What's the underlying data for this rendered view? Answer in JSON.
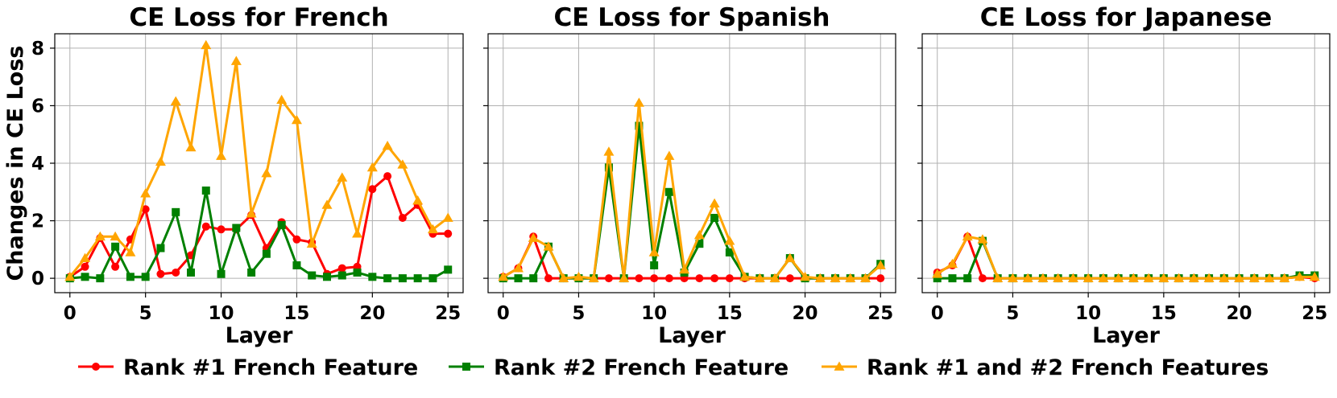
{
  "chart_data": [
    {
      "type": "line",
      "title": "CE Loss for French",
      "xlabel": "Layer",
      "ylabel": "Changes in CE Loss",
      "xlim": [
        -1,
        26
      ],
      "ylim": [
        -0.5,
        8.5
      ],
      "xticks": [
        "0",
        "5",
        "10",
        "15",
        "20",
        "25"
      ],
      "yticks": [
        "0",
        "2",
        "4",
        "6",
        "8"
      ],
      "grid": true,
      "x": [
        0,
        1,
        2,
        3,
        4,
        5,
        6,
        7,
        8,
        9,
        10,
        11,
        12,
        13,
        14,
        15,
        16,
        17,
        18,
        19,
        20,
        21,
        22,
        23,
        24,
        25
      ],
      "series": [
        {
          "name": "Rank #1 French Feature",
          "color": "#ff0000",
          "marker": "circle",
          "values": [
            0.05,
            0.4,
            1.4,
            0.4,
            1.35,
            2.4,
            0.15,
            0.2,
            0.8,
            1.8,
            1.7,
            1.7,
            2.2,
            1.05,
            1.95,
            1.35,
            1.25,
            0.15,
            0.35,
            0.4,
            3.1,
            3.55,
            2.1,
            2.55,
            1.55,
            1.55
          ]
        },
        {
          "name": "Rank #2 French Feature",
          "color": "#008000",
          "marker": "square",
          "values": [
            0.0,
            0.05,
            0.0,
            1.1,
            0.05,
            0.05,
            1.05,
            2.3,
            0.2,
            3.05,
            0.15,
            1.75,
            0.2,
            0.85,
            1.85,
            0.45,
            0.1,
            0.05,
            0.1,
            0.2,
            0.05,
            0.0,
            0.0,
            0.0,
            0.0,
            0.3
          ]
        },
        {
          "name": "Rank #1 and #2 French Features",
          "color": "#ffa500",
          "marker": "triangle",
          "values": [
            0.05,
            0.7,
            1.45,
            1.45,
            0.9,
            2.95,
            4.05,
            6.15,
            4.55,
            8.1,
            4.25,
            7.55,
            2.25,
            3.65,
            6.2,
            5.5,
            1.2,
            2.55,
            3.5,
            1.55,
            3.85,
            4.6,
            3.95,
            2.7,
            1.7,
            2.1
          ]
        }
      ]
    },
    {
      "type": "line",
      "title": "CE Loss for Spanish",
      "xlabel": "Layer",
      "ylabel": "",
      "xlim": [
        -1,
        26
      ],
      "ylim": [
        -0.5,
        8.5
      ],
      "xticks": [
        "0",
        "5",
        "10",
        "15",
        "20",
        "25"
      ],
      "grid": true,
      "x": [
        0,
        1,
        2,
        3,
        4,
        5,
        6,
        7,
        8,
        9,
        10,
        11,
        12,
        13,
        14,
        15,
        16,
        17,
        18,
        19,
        20,
        21,
        22,
        23,
        24,
        25
      ],
      "series": [
        {
          "name": "Rank #1 French Feature",
          "color": "#ff0000",
          "marker": "circle",
          "values": [
            0.05,
            0.35,
            1.45,
            0.0,
            0.0,
            0.0,
            0.0,
            0.0,
            0.0,
            0.0,
            0.0,
            0.0,
            0.0,
            0.0,
            0.0,
            0.0,
            0.0,
            0.0,
            0.0,
            0.0,
            0.0,
            0.0,
            0.0,
            0.0,
            0.0,
            0.0
          ]
        },
        {
          "name": "Rank #2 French Feature",
          "color": "#008000",
          "marker": "square",
          "values": [
            0.0,
            0.0,
            0.0,
            1.1,
            0.0,
            0.0,
            0.0,
            3.85,
            0.0,
            5.3,
            0.45,
            3.0,
            0.2,
            1.2,
            2.1,
            0.9,
            0.05,
            0.0,
            0.0,
            0.7,
            0.0,
            0.0,
            0.0,
            0.0,
            0.0,
            0.5
          ]
        },
        {
          "name": "Rank #1 and #2 French Features",
          "color": "#ffa500",
          "marker": "triangle",
          "values": [
            0.05,
            0.35,
            1.4,
            1.1,
            0.0,
            0.05,
            0.0,
            4.4,
            0.0,
            6.1,
            0.9,
            4.25,
            0.3,
            1.5,
            2.6,
            1.3,
            0.05,
            0.0,
            0.0,
            0.7,
            0.05,
            0.0,
            0.0,
            0.0,
            0.0,
            0.45
          ]
        }
      ]
    },
    {
      "type": "line",
      "title": "CE Loss for Japanese",
      "xlabel": "Layer",
      "ylabel": "",
      "xlim": [
        -1,
        26
      ],
      "ylim": [
        -0.5,
        8.5
      ],
      "xticks": [
        "0",
        "5",
        "10",
        "15",
        "20",
        "25"
      ],
      "grid": true,
      "x": [
        0,
        1,
        2,
        3,
        4,
        5,
        6,
        7,
        8,
        9,
        10,
        11,
        12,
        13,
        14,
        15,
        16,
        17,
        18,
        19,
        20,
        21,
        22,
        23,
        24,
        25
      ],
      "series": [
        {
          "name": "Rank #1 French Feature",
          "color": "#ff0000",
          "marker": "circle",
          "values": [
            0.2,
            0.45,
            1.45,
            0.0,
            0.0,
            0.0,
            0.0,
            0.0,
            0.0,
            0.0,
            0.0,
            0.0,
            0.0,
            0.0,
            0.0,
            0.0,
            0.0,
            0.0,
            0.0,
            0.0,
            0.0,
            0.0,
            0.0,
            0.0,
            0.05,
            0.0
          ]
        },
        {
          "name": "Rank #2 French Feature",
          "color": "#008000",
          "marker": "square",
          "values": [
            0.0,
            0.0,
            0.0,
            1.3,
            0.0,
            0.0,
            0.0,
            0.0,
            0.0,
            0.0,
            0.0,
            0.0,
            0.0,
            0.0,
            0.0,
            0.0,
            0.0,
            0.0,
            0.0,
            0.0,
            0.0,
            0.0,
            0.0,
            0.0,
            0.1,
            0.1
          ]
        },
        {
          "name": "Rank #1 and #2 French Features",
          "color": "#ffa500",
          "marker": "triangle",
          "values": [
            0.15,
            0.5,
            1.45,
            1.35,
            0.0,
            0.0,
            0.0,
            0.0,
            0.0,
            0.0,
            0.0,
            0.0,
            0.0,
            0.0,
            0.0,
            0.0,
            0.0,
            0.0,
            0.0,
            0.0,
            0.0,
            0.0,
            0.0,
            0.0,
            0.05,
            0.05
          ]
        }
      ]
    }
  ],
  "legend": {
    "position": "bottom-center",
    "entries": [
      {
        "label": "Rank #1 French Feature",
        "color": "#ff0000",
        "marker": "circle"
      },
      {
        "label": "Rank #2 French Feature",
        "color": "#008000",
        "marker": "square"
      },
      {
        "label": "Rank #1 and #2 French Features",
        "color": "#ffa500",
        "marker": "triangle"
      }
    ]
  }
}
